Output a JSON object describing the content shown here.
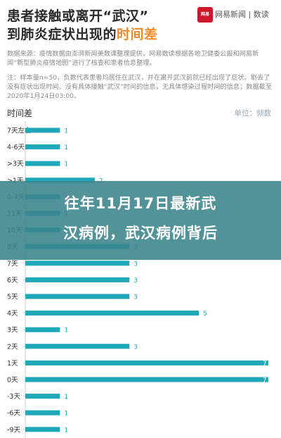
{
  "header": {
    "title_line1": "患者接触或离开“武汉”",
    "title_line2_prefix": "到肺炎症状出现的",
    "title_line2_highlight": "时间差",
    "logo_text": "网易",
    "brand": "网易新闻 | 数读"
  },
  "source_text": "数据来源：疫情数据由澎湃新闻美数课整理提供，网易数读根据各地卫健委公报和网易新闻“新型肺炎疫情地图”进行了核查和患者信息整理。",
  "note_text": "注：样本量n=50，负数代表患者均居住在武汉，并在离开武汉前就已经出现了症状。剔去了没有症状出现时间、没有具体接触“武汉”时间的信息，无具体感染过程时间的信息；数据截至2020年1月24日03:00。",
  "chart_label": "时间差",
  "unit_label": "单位：频数",
  "overlay": {
    "line1": "往年11月17日最新武",
    "line2": "汉病例，武汉病例背后"
  },
  "colors": {
    "bar": "#1fa9b8",
    "highlight": "#f08a28",
    "overlay": "#3a848c",
    "value_text": "#1fa9b8"
  },
  "chart_data": {
    "type": "bar",
    "orientation": "horizontal",
    "categories": [
      "7天左右",
      "4-6天",
      ">3天",
      ">1天",
      "0-4天",
      "21天",
      "10天",
      "8天",
      "7天",
      "6天",
      "5天",
      "4天",
      "3天",
      "2天",
      "1天",
      "0天",
      "-3天",
      "-6天",
      "-9天"
    ],
    "values": [
      1,
      1,
      1,
      2,
      1,
      1,
      1,
      3,
      3,
      3,
      3,
      5,
      1,
      3,
      7,
      7,
      1,
      1,
      1
    ],
    "title": "时间差",
    "xlabel": "",
    "ylabel": "",
    "xlim": [
      0,
      7
    ],
    "grid": false,
    "legend": "none"
  }
}
